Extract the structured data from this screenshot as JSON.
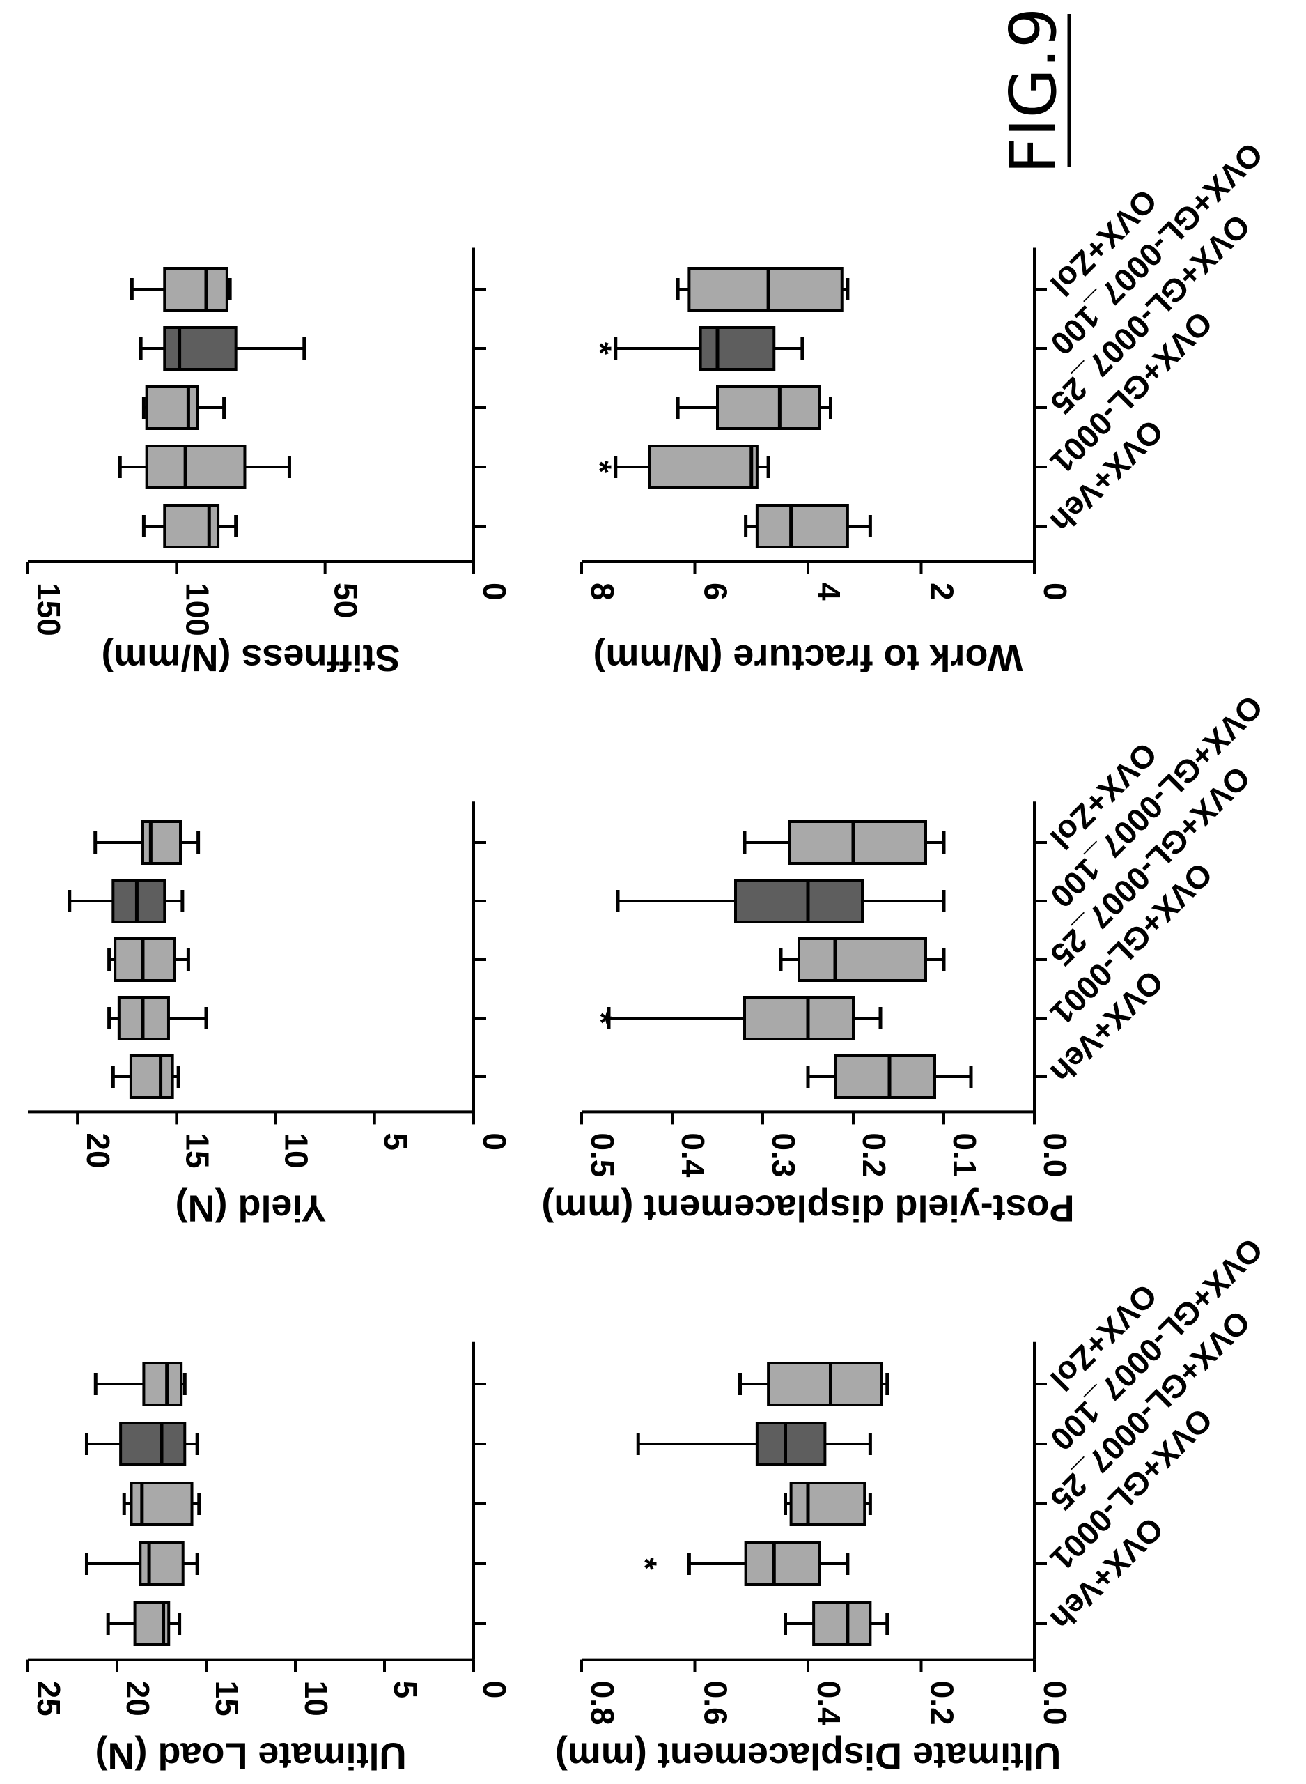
{
  "figure_label": "FIG.9",
  "chart_data": [
    {
      "type": "box",
      "ylabel": "Ultimate Load (N)",
      "yticks": [
        0,
        5,
        10,
        15,
        20,
        25
      ],
      "ylim": [
        0,
        25
      ],
      "categories": [
        "OVX+Veh",
        "OVX+GL-0001",
        "OVX+GL-0007_25",
        "OVX+GL-0007_100",
        "OVX+Zol"
      ],
      "boxes": [
        {
          "min": 16.5,
          "q1": 17.1,
          "median": 17.4,
          "q3": 19,
          "max": 20.5
        },
        {
          "min": 15.5,
          "q1": 16.3,
          "median": 18.2,
          "q3": 18.7,
          "max": 21.7
        },
        {
          "min": 15.4,
          "q1": 15.8,
          "median": 18.6,
          "q3": 19.2,
          "max": 19.6
        },
        {
          "min": 15.5,
          "q1": 16.2,
          "median": 17.5,
          "q3": 19.8,
          "max": 21.7
        },
        {
          "min": 16.2,
          "q1": 16.4,
          "median": 17.2,
          "q3": 18.5,
          "max": 21.2
        }
      ],
      "annotations": []
    },
    {
      "type": "box",
      "ylabel": "Yield (N)",
      "yticks": [
        0,
        5,
        10,
        15,
        20
      ],
      "ylim": [
        0,
        22.5
      ],
      "categories": [
        "OVX+Veh",
        "OVX+GL-0001",
        "OVX+GL-0007_25",
        "OVX+GL-0007_100",
        "OVX+Zol"
      ],
      "boxes": [
        {
          "min": 14.9,
          "q1": 15.2,
          "median": 15.8,
          "q3": 17.3,
          "max": 18.2
        },
        {
          "min": 13.5,
          "q1": 15.4,
          "median": 16.7,
          "q3": 17.9,
          "max": 18.4
        },
        {
          "min": 14.4,
          "q1": 15.1,
          "median": 16.7,
          "q3": 18.1,
          "max": 18.4
        },
        {
          "min": 14.7,
          "q1": 15.6,
          "median": 17,
          "q3": 18.2,
          "max": 20.4
        },
        {
          "min": 13.9,
          "q1": 14.8,
          "median": 16.3,
          "q3": 16.7,
          "max": 19.1
        }
      ],
      "annotations": []
    },
    {
      "type": "box",
      "ylabel": "Stiffness (N/mm)",
      "yticks": [
        0,
        50,
        100,
        150
      ],
      "ylim": [
        0,
        150
      ],
      "categories": [
        "OVX+Veh",
        "OVX+GL-0001",
        "OVX+GL-0007_25",
        "OVX+GL-0007_100",
        "OVX+Zol"
      ],
      "boxes": [
        {
          "min": 80,
          "q1": 86,
          "median": 89,
          "q3": 104,
          "max": 111
        },
        {
          "min": 62,
          "q1": 77,
          "median": 97,
          "q3": 110,
          "max": 119
        },
        {
          "min": 84,
          "q1": 93,
          "median": 96,
          "q3": 110,
          "max": 111
        },
        {
          "min": 57,
          "q1": 80,
          "median": 99,
          "q3": 104,
          "max": 112
        },
        {
          "min": 82,
          "q1": 83,
          "median": 90,
          "q3": 104,
          "max": 115
        }
      ],
      "annotations": []
    },
    {
      "type": "box",
      "ylabel": "Ultimate Displacement (mm)",
      "yticks": [
        "0.0",
        "0.2",
        "0.4",
        "0.6",
        "0.8"
      ],
      "ylim": [
        0,
        0.8
      ],
      "categories": [
        "OVX+Veh",
        "OVX+GL-0001",
        "OVX+GL-0007_25",
        "OVX+GL-0007_100",
        "OVX+Zol"
      ],
      "boxes": [
        {
          "min": 0.26,
          "q1": 0.29,
          "median": 0.33,
          "q3": 0.39,
          "max": 0.44
        },
        {
          "min": 0.33,
          "q1": 0.38,
          "median": 0.46,
          "q3": 0.51,
          "max": 0.61
        },
        {
          "min": 0.29,
          "q1": 0.3,
          "median": 0.4,
          "q3": 0.43,
          "max": 0.44
        },
        {
          "min": 0.29,
          "q1": 0.37,
          "median": 0.44,
          "q3": 0.49,
          "max": 0.7
        },
        {
          "min": 0.26,
          "q1": 0.27,
          "median": 0.36,
          "q3": 0.47,
          "max": 0.52
        }
      ],
      "annotations": [
        {
          "category": "OVX+GL-0001",
          "text": "*",
          "y": 0.69
        }
      ]
    },
    {
      "type": "box",
      "ylabel": "Post-yield displacement (mm)",
      "yticks": [
        "0.0",
        "0.1",
        "0.2",
        "0.3",
        "0.4",
        "0.5"
      ],
      "ylim": [
        0,
        0.5
      ],
      "categories": [
        "OVX+Veh",
        "OVX+GL-0001",
        "OVX+GL-0007_25",
        "OVX+GL-0007_100",
        "OVX+Zol"
      ],
      "boxes": [
        {
          "min": 0.07,
          "q1": 0.11,
          "median": 0.16,
          "q3": 0.22,
          "max": 0.25
        },
        {
          "min": 0.17,
          "q1": 0.2,
          "median": 0.25,
          "q3": 0.32,
          "max": 0.47
        },
        {
          "min": 0.1,
          "q1": 0.12,
          "median": 0.22,
          "q3": 0.26,
          "max": 0.28
        },
        {
          "min": 0.1,
          "q1": 0.19,
          "median": 0.25,
          "q3": 0.33,
          "max": 0.46
        },
        {
          "min": 0.1,
          "q1": 0.12,
          "median": 0.2,
          "q3": 0.27,
          "max": 0.32
        }
      ],
      "annotations": [
        {
          "category": "OVX+GL-0001",
          "text": "*",
          "y": 0.48
        }
      ]
    },
    {
      "type": "box",
      "ylabel": "Work to fracture (N/mm)",
      "yticks": [
        0,
        2,
        4,
        6,
        8
      ],
      "ylim": [
        0,
        8
      ],
      "categories": [
        "OVX+Veh",
        "OVX+GL-0001",
        "OVX+GL-0007_25",
        "OVX+GL-0007_100",
        "OVX+Zol"
      ],
      "boxes": [
        {
          "min": 2.9,
          "q1": 3.3,
          "median": 4.3,
          "q3": 4.9,
          "max": 5.1
        },
        {
          "min": 4.7,
          "q1": 4.9,
          "median": 5,
          "q3": 6.8,
          "max": 7.4
        },
        {
          "min": 3.6,
          "q1": 3.8,
          "median": 4.5,
          "q3": 5.6,
          "max": 6.3
        },
        {
          "min": 4.1,
          "q1": 4.6,
          "median": 5.6,
          "q3": 5.9,
          "max": 7.4
        },
        {
          "min": 3.3,
          "q1": 3.4,
          "median": 4.7,
          "q3": 6.1,
          "max": 6.3
        }
      ],
      "annotations": [
        {
          "category": "OVX+GL-0001",
          "text": "*",
          "y": 7.7
        },
        {
          "category": "OVX+GL-0007_100",
          "text": "*",
          "y": 7.7
        }
      ]
    }
  ],
  "colors": {
    "box_light": "#a9a9a9",
    "box_dark": "#5e5e5e",
    "ink": "#000000",
    "background": "#ffffff"
  }
}
